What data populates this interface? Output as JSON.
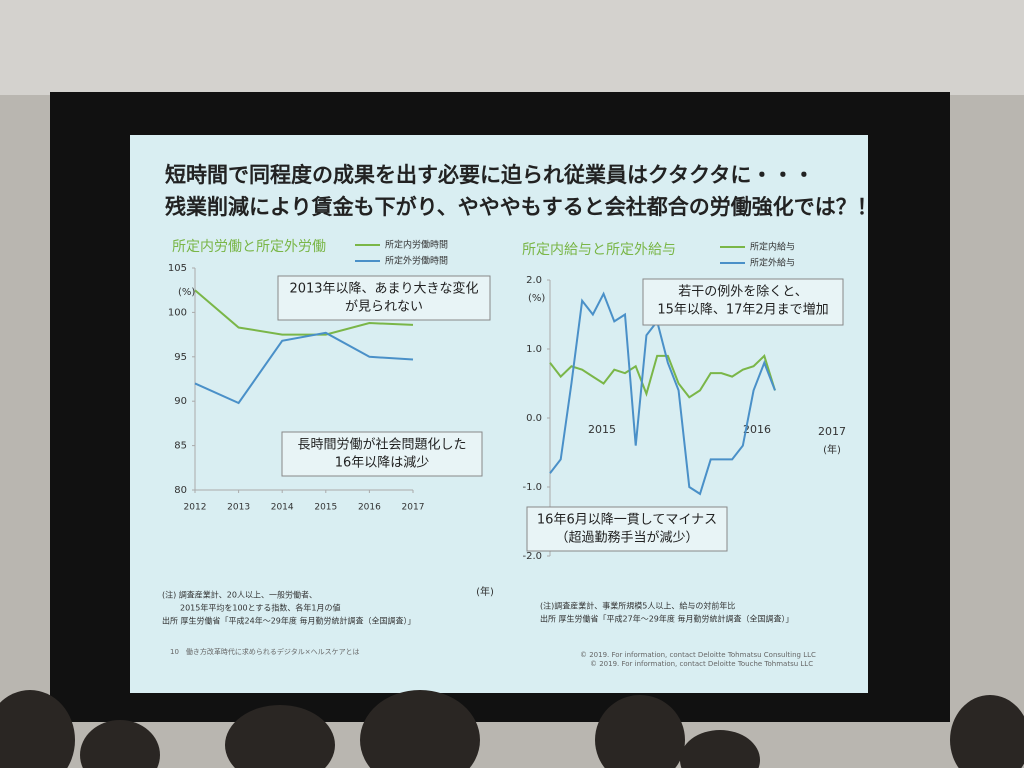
{
  "slide": {
    "title": [
      "短時間で同程度の成果を出す必要に迫られ従業員はクタクタに・・・",
      "残業削減により賃金も下がり、やややもすると会社都合の労働強化では？！"
    ],
    "notes_left": [
      "(注) 調査産業計、20人以上、一般労働者、",
      "2015年平均を100とする指数、各年1月の値",
      "出所 厚生労働省「平成24年～29年度 毎月勤労統計調査（全国調査）」"
    ],
    "notes_right": [
      "(注)調査産業計、事業所規模5人以上、給与の対前年比",
      "出所 厚生労働省「平成27年～29年度 毎月勤労統計調査（全国調査）」"
    ],
    "footer": [
      "10　働き方改革時代に求められるデジタル×ヘルスケアとは",
      "© 2019. For information, contact Deloitte Tohmatsu Consulting LLC",
      "© 2019. For information, contact Deloitte Touche Tohmatsu LLC"
    ]
  },
  "chart_data": [
    {
      "type": "line",
      "title": "所定内労働と所定外労働",
      "y_unit": "(%)",
      "x_unit": "(年)",
      "x": [
        2012,
        2013,
        2014,
        2015,
        2016,
        2017
      ],
      "xlim": [
        2012,
        2017
      ],
      "xticks": [
        2012,
        2013,
        2014,
        2015,
        2016,
        2017
      ],
      "ylim": [
        80,
        105
      ],
      "yticks": [
        80,
        85,
        90,
        95,
        100,
        105
      ],
      "series": [
        {
          "name": "所定内労働時間",
          "color": "#7ab648",
          "values": [
            102.5,
            98.3,
            97.5,
            97.5,
            98.8,
            98.6
          ]
        },
        {
          "name": "所定外労働時間",
          "color": "#4a90c8",
          "values": [
            92,
            89.8,
            96.8,
            97.7,
            95,
            94.7
          ]
        }
      ],
      "annotations": [
        [
          "2013年以降、あまり大きな変化",
          "が見られない"
        ],
        [
          "長時間労働が社会問題化した",
          "16年以降は減少"
        ]
      ]
    },
    {
      "type": "line",
      "title": "所定内給与と所定外給与",
      "y_unit": "(%)",
      "x_unit": "(年)",
      "x_labels": [
        "2015",
        "2016",
        "2017"
      ],
      "categories": [
        null,
        null,
        null,
        null,
        null,
        null,
        null,
        null,
        null,
        null,
        null,
        null,
        null,
        null,
        null,
        null,
        null,
        null,
        null,
        null,
        null,
        null
      ],
      "ylim": [
        -2,
        2
      ],
      "yticks": [
        {
          "value": -2,
          "label": "-2.0"
        },
        {
          "value": -1,
          "label": "-1.0"
        },
        {
          "value": 0,
          "label": "0.0"
        },
        {
          "value": 1,
          "label": "1.0"
        },
        {
          "value": 2,
          "label": "2.0"
        }
      ],
      "series": [
        {
          "name": "所定内給与",
          "color": "#7ab648",
          "values": [
            0.8,
            0.6,
            0.75,
            0.7,
            0.6,
            0.5,
            0.7,
            0.65,
            0.75,
            0.35,
            0.9,
            0.9,
            0.5,
            0.3,
            0.4,
            0.65,
            0.65,
            0.6,
            0.7,
            0.75,
            0.9,
            0.4
          ]
        },
        {
          "name": "所定外給与",
          "color": "#4a90c8",
          "values": [
            -0.8,
            -0.6,
            0.5,
            1.7,
            1.5,
            1.8,
            1.4,
            1.5,
            -0.4,
            1.2,
            1.4,
            0.8,
            0.4,
            -1.0,
            -1.1,
            -0.6,
            -0.6,
            -0.6,
            -0.4,
            0.4,
            0.8,
            0.4
          ]
        }
      ],
      "annotations": [
        [
          "若干の例外を除くと、",
          "15年以降、17年2月まで増加"
        ],
        [
          "16年6月以降一貫してマイナス",
          "（超過勤務手当が減少）"
        ]
      ]
    }
  ]
}
